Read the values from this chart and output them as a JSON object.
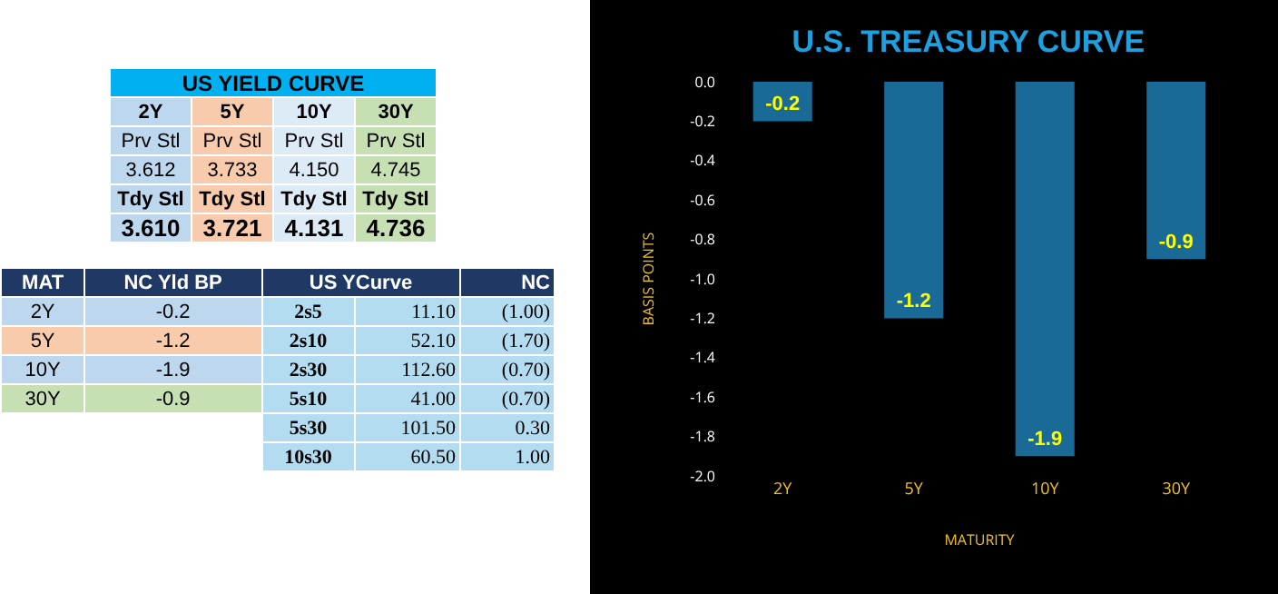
{
  "chart_data": [
    {
      "type": "other",
      "title": "US YIELD CURVE",
      "colors": [
        "#bdd7ee",
        "#f8cbad",
        "#ddebf7",
        "#c6e0b4"
      ],
      "cell_labels": [
        [
          "2Y",
          "5Y",
          "10Y",
          "30Y"
        ],
        [
          "Prv Stl",
          "Prv Stl",
          "Prv Stl",
          "Prv Stl"
        ],
        [
          "3.612",
          "3.733",
          "4.150",
          "4.745"
        ],
        [
          "Tdy Stl",
          "Tdy Stl",
          "Tdy Stl",
          "Tdy Stl"
        ],
        [
          "3.610",
          "3.721",
          "4.131",
          "4.736"
        ]
      ]
    },
    {
      "type": "other",
      "colors": [
        "#1f3864",
        "#bdd7ee",
        "#f8cbad",
        "#bdd7ee",
        "#c6e0b4"
      ],
      "cell_labels": [
        [
          "MAT",
          "NC Yld  BP",
          "US YCurve",
          null,
          "NC"
        ],
        [
          "2Y",
          "-0.2",
          "2s5",
          "11.10",
          "(1.00)"
        ],
        [
          "5Y",
          "-1.2",
          "2s10",
          "52.10",
          "(1.70)"
        ],
        [
          "10Y",
          "-1.9",
          "2s30",
          "112.60",
          "(0.70)"
        ],
        [
          "30Y",
          "-0.9",
          "5s10",
          "41.00",
          "(0.70)"
        ],
        [
          null,
          null,
          "5s30",
          "101.50",
          "0.30"
        ],
        [
          null,
          null,
          "10s30",
          "60.50",
          "1.00"
        ]
      ]
    },
    {
      "type": "bar",
      "title": "U.S. TREASURY CURVE",
      "xlabel": "MATURITY",
      "ylabel": "BASIS POINTS",
      "categories": [
        "2Y",
        "5Y",
        "10Y",
        "30Y"
      ],
      "values": [
        -0.2,
        -1.2,
        -1.9,
        -0.9
      ],
      "color": "#1a6a98",
      "data_labels": true,
      "ylim": [
        -2,
        0
      ],
      "yticks": [
        {
          "value": 0,
          "label": "0.0"
        },
        {
          "value": -0.2,
          "label": "-0.2"
        },
        {
          "value": -0.4,
          "label": "-0.4"
        },
        {
          "value": -0.6,
          "label": "-0.6"
        },
        {
          "value": -0.8,
          "label": "-0.8"
        },
        {
          "value": -1,
          "label": "-1.0"
        },
        {
          "value": -1.2,
          "label": "-1.2"
        },
        {
          "value": -1.4,
          "label": "-1.4"
        },
        {
          "value": -1.6,
          "label": "-1.6"
        },
        {
          "value": -1.8,
          "label": "-1.8"
        },
        {
          "value": -2,
          "label": "-2.0"
        }
      ],
      "grid": false
    }
  ]
}
